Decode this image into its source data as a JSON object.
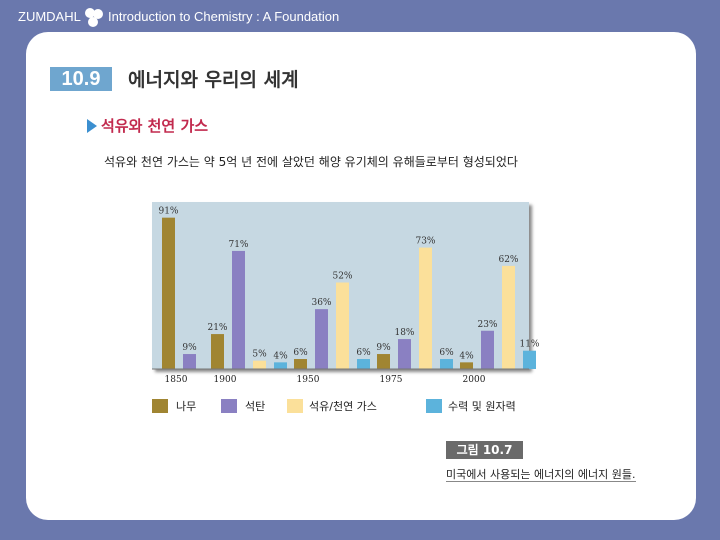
{
  "header": {
    "brand": "ZUMDAHL",
    "course_title": "Introduction to Chemistry : A Foundation"
  },
  "section": {
    "number": "10.9",
    "title": "에너지와 우리의 세계"
  },
  "subheading": "석유와 천연 가스",
  "body_text": "석유와 천연 가스는 약 5억 년 전에 살았던 해양 유기체의 유해들로부터 형성되었다",
  "figure": {
    "label": "그림 10.7",
    "caption": "미국에서 사용되는 에너지의 에너지 원들."
  },
  "colors": {
    "header_bg": "#6a78ad",
    "chart_bg": "#c6d8e2",
    "section_badge": "#6fa6cf",
    "subheading": "#c22a4e"
  },
  "chart_data": {
    "type": "bar",
    "title": "",
    "xlabel": "",
    "ylabel": "",
    "ylim": [
      0,
      100
    ],
    "grid": false,
    "categories": [
      "1850",
      "1900",
      "1950",
      "1975",
      "2000"
    ],
    "series": [
      {
        "name": "나무",
        "color": "#a08532",
        "values": [
          91,
          21,
          6,
          9,
          4
        ],
        "labels": [
          "91%",
          "21%",
          "6%",
          "9%",
          "4%"
        ]
      },
      {
        "name": "석탄",
        "color": "#8a80c2",
        "values": [
          9,
          71,
          36,
          18,
          23
        ],
        "labels": [
          "9%",
          "71%",
          "36%",
          "18%",
          "23%"
        ]
      },
      {
        "name": "석유/천연 가스",
        "color": "#fbe09a",
        "values": [
          0,
          5,
          52,
          73,
          62
        ],
        "labels": [
          "",
          "5%",
          "52%",
          "73%",
          "62%"
        ]
      },
      {
        "name": "수력 및 원자력",
        "color": "#5cb3dc",
        "values": [
          0,
          4,
          6,
          6,
          11
        ],
        "labels": [
          "",
          "4%",
          "6%",
          "6%",
          "11%"
        ]
      }
    ],
    "legend_position": "bottom"
  }
}
